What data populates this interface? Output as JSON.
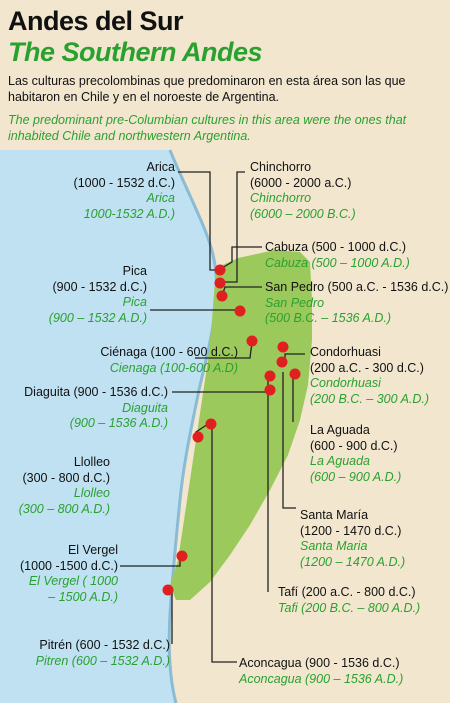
{
  "title": "Andes del Sur",
  "subtitle": "The Southern Andes",
  "intro_es": "Las culturas precolombinas que predominaron en esta área son las que habitaron en Chile y en el noroeste de Argentina.",
  "intro_en": "The predominant pre-Columbian cultures in this area were the ones that inhabited Chile and northwestern Argentina.",
  "colors": {
    "land": "#f2e6cf",
    "sea": "#bfe1f2",
    "region": "#9cc95c",
    "dot": "#e02020",
    "english": "#2aa12f"
  },
  "cultures": [
    {
      "id": "arica",
      "name": "Arica",
      "dates": "(1000 - 1532 d.C.)",
      "name_en": "Arica",
      "dates_en": "1000-1532 A.D.)"
    },
    {
      "id": "chinchorro",
      "name": "Chinchorro",
      "dates": "(6000 - 2000 a.C.)",
      "name_en": "Chinchorro",
      "dates_en": "(6000 – 2000 B.C.)"
    },
    {
      "id": "cabuza",
      "line": "Cabuza (500 - 1000 d.C.)",
      "line_en": "Cabuza (500 – 1000 A.D.)"
    },
    {
      "id": "pica",
      "name": "Pica",
      "dates": "(900 - 1532 d.C.)",
      "name_en": "Pica",
      "dates_en": "(900 – 1532 A.D.)"
    },
    {
      "id": "sanpedro",
      "line": "San Pedro (500 a.C. - 1536 d.C.)",
      "name_en": "San Pedro",
      "dates_en": "(500 B.C. – 1536 A.D.)"
    },
    {
      "id": "cienaga",
      "line": "Ciénaga (100 - 600 d.C.)",
      "line_en": "Cienaga (100-600 A.D)"
    },
    {
      "id": "condorhuasi",
      "name": "Condorhuasi",
      "dates": "(200 a.C. - 300 d.C.)",
      "name_en": "Condorhuasi",
      "dates_en": "(200 B.C. – 300 A.D.)"
    },
    {
      "id": "diaguita",
      "line": "Diaguita (900 - 1536 d.C.)",
      "name_en": "Diaguita",
      "dates_en": "(900 – 1536 A.D.)"
    },
    {
      "id": "laaguada",
      "name": "La Aguada",
      "dates": "(600 - 900 d.C.)",
      "name_en": "La Aguada",
      "dates_en": "(600 – 900 A.D.)"
    },
    {
      "id": "llolleo",
      "name": "Llolleo",
      "dates": "(300 - 800 d.C.)",
      "name_en": "Llolleo",
      "dates_en": "(300 – 800 A.D.)"
    },
    {
      "id": "santamaria",
      "name": "Santa María",
      "dates": "(1200 - 1470 d.C.)",
      "name_en": "Santa Maria",
      "dates_en": "(1200 – 1470 A.D.)"
    },
    {
      "id": "elvergel",
      "name": "El Vergel",
      "dates": "(1000 -1500 d.C.)",
      "name_en": "El Vergel ( 1000",
      "dates_en": "– 1500 A.D.)"
    },
    {
      "id": "tafi",
      "line": "Tafí (200 a.C. - 800 d.C.)",
      "line_en": "Tafi (200 B.C. – 800 A.D.)"
    },
    {
      "id": "pitren",
      "line": "Pitrén (600 - 1532 d.C.)",
      "line_en": "Pitren (600 – 1532 A.D.)"
    },
    {
      "id": "aconcagua",
      "line": "Aconcagua (900 - 1536 d.C.)",
      "line_en": "Aconcagua (900 – 1536 A.D.)"
    }
  ]
}
